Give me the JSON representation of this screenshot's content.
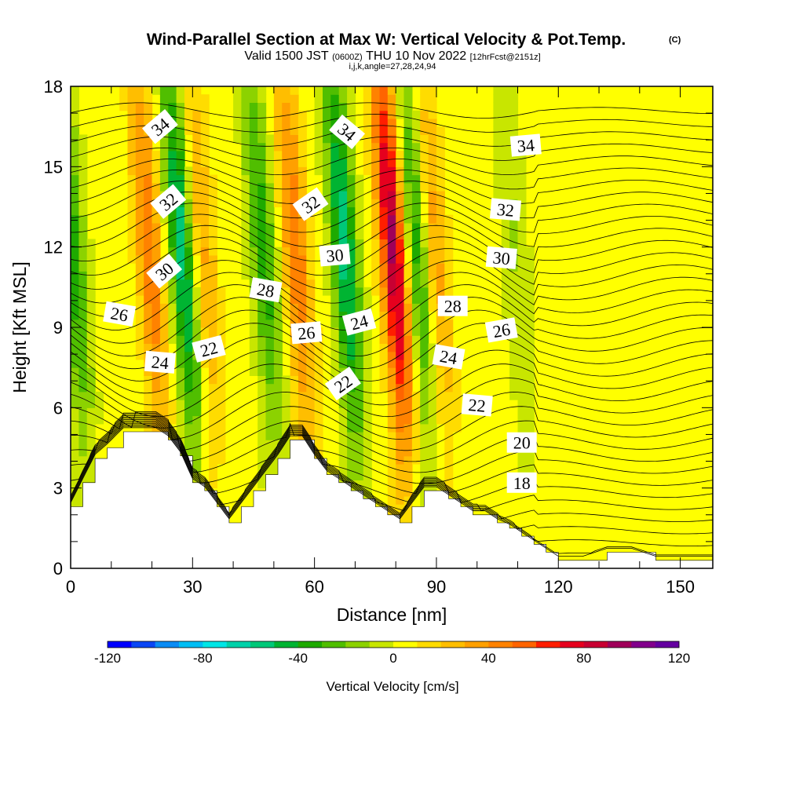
{
  "header": {
    "title": "Wind-Parallel Section at Max W: Vertical Velocity & Pot.Temp.",
    "copyright": "(C)",
    "valid_a": "Valid 1500 JST",
    "valid_b": "(0600Z)",
    "valid_c": "THU 10 Nov 2022",
    "valid_d": "[12hrFcst@2151z]",
    "indices": "i,j,k,angle=27,28,24,94"
  },
  "chart_data": {
    "type": "heatmap",
    "xlabel": "Distance [nm]",
    "ylabel": "Height [Kft MSL]",
    "xlim": [
      0,
      158
    ],
    "ylim": [
      0,
      18
    ],
    "xticks": [
      0,
      30,
      60,
      90,
      120,
      150
    ],
    "yticks": [
      0,
      3,
      6,
      9,
      12,
      15,
      18
    ],
    "colorbar": {
      "label": "Vertical Velocity [cm/s]",
      "range": [
        -120,
        120
      ],
      "step": 10,
      "ticks": [
        -120,
        -80,
        -40,
        0,
        40,
        80,
        120
      ],
      "colors": [
        "#0000ff",
        "#0a46f5",
        "#0a8cf5",
        "#00bef5",
        "#00e6e6",
        "#00d2aa",
        "#00c878",
        "#00b432",
        "#1eaa00",
        "#50be00",
        "#8cd200",
        "#c8e600",
        "#ffff00",
        "#ffdc00",
        "#ffbe00",
        "#ffa000",
        "#ff8200",
        "#ff6400",
        "#ff1e00",
        "#e6001e",
        "#c80032",
        "#a0005a",
        "#82008c",
        "#6400a0"
      ]
    },
    "updrafts": [
      {
        "x": 22,
        "peak_w": 45
      },
      {
        "x": 35,
        "peak_w": 30
      },
      {
        "x": 58,
        "peak_w": 45
      },
      {
        "x": 82,
        "peak_w": 90
      },
      {
        "x": 92,
        "peak_w": 35
      }
    ],
    "downdrafts": [
      {
        "x": 3,
        "peak_w": -40
      },
      {
        "x": 30,
        "peak_w": -60
      },
      {
        "x": 50,
        "peak_w": -40
      },
      {
        "x": 70,
        "peak_w": -60
      },
      {
        "x": 88,
        "peak_w": -45
      },
      {
        "x": 112,
        "peak_w": -15
      }
    ],
    "terrain_height_kft": [
      [
        0,
        2.3
      ],
      [
        3,
        3.2
      ],
      [
        6,
        4.1
      ],
      [
        9,
        4.5
      ],
      [
        13,
        5.1
      ],
      [
        21,
        5.1
      ],
      [
        24,
        4.8
      ],
      [
        27,
        4.2
      ],
      [
        30,
        3.2
      ],
      [
        33,
        2.9
      ],
      [
        36,
        2.3
      ],
      [
        39,
        1.7
      ],
      [
        42,
        2.3
      ],
      [
        45,
        2.9
      ],
      [
        48,
        3.5
      ],
      [
        51,
        4.1
      ],
      [
        54,
        4.8
      ],
      [
        57,
        4.8
      ],
      [
        60,
        4.1
      ],
      [
        63,
        3.5
      ],
      [
        66,
        3.2
      ],
      [
        69,
        2.9
      ],
      [
        72,
        2.6
      ],
      [
        75,
        2.3
      ],
      [
        78,
        2.0
      ],
      [
        81,
        1.7
      ],
      [
        84,
        2.3
      ],
      [
        87,
        2.9
      ],
      [
        90,
        2.9
      ],
      [
        93,
        2.6
      ],
      [
        96,
        2.3
      ],
      [
        99,
        2.0
      ],
      [
        102,
        2.0
      ],
      [
        105,
        1.7
      ],
      [
        108,
        1.5
      ],
      [
        111,
        1.2
      ],
      [
        114,
        0.9
      ],
      [
        117,
        0.6
      ],
      [
        120,
        0.3
      ],
      [
        126,
        0.3
      ],
      [
        132,
        0.6
      ],
      [
        138,
        0.6
      ],
      [
        144,
        0.3
      ],
      [
        150,
        0.3
      ],
      [
        158,
        0.3
      ]
    ],
    "isentrope_labels": [
      {
        "text": "34",
        "x": 22,
        "y": 16.5,
        "rot": -40
      },
      {
        "text": "34",
        "x": 68,
        "y": 16.3,
        "rot": 40
      },
      {
        "text": "34",
        "x": 112,
        "y": 15.8,
        "rot": -5
      },
      {
        "text": "32",
        "x": 24,
        "y": 13.7,
        "rot": -40
      },
      {
        "text": "32",
        "x": 59,
        "y": 13.6,
        "rot": -35
      },
      {
        "text": "32",
        "x": 107,
        "y": 13.4,
        "rot": 5
      },
      {
        "text": "30",
        "x": 23,
        "y": 11.1,
        "rot": -40
      },
      {
        "text": "30",
        "x": 65,
        "y": 11.7,
        "rot": -5
      },
      {
        "text": "30",
        "x": 106,
        "y": 11.6,
        "rot": 5
      },
      {
        "text": "28",
        "x": 48,
        "y": 10.4,
        "rot": 10
      },
      {
        "text": "28",
        "x": 94,
        "y": 9.8,
        "rot": 0
      },
      {
        "text": "26",
        "x": 12,
        "y": 9.5,
        "rot": 10
      },
      {
        "text": "26",
        "x": 58,
        "y": 8.8,
        "rot": -5
      },
      {
        "text": "26",
        "x": 106,
        "y": 8.9,
        "rot": -10
      },
      {
        "text": "24",
        "x": 22,
        "y": 7.7,
        "rot": 5
      },
      {
        "text": "24",
        "x": 71,
        "y": 9.2,
        "rot": -15
      },
      {
        "text": "24",
        "x": 93,
        "y": 7.9,
        "rot": 10
      },
      {
        "text": "22",
        "x": 34,
        "y": 8.2,
        "rot": -15
      },
      {
        "text": "22",
        "x": 67,
        "y": 6.9,
        "rot": -35
      },
      {
        "text": "22",
        "x": 100,
        "y": 6.1,
        "rot": 5
      },
      {
        "text": "20",
        "x": 111,
        "y": 4.7,
        "rot": 0
      },
      {
        "text": "18",
        "x": 111,
        "y": 3.2,
        "rot": 0
      }
    ]
  }
}
